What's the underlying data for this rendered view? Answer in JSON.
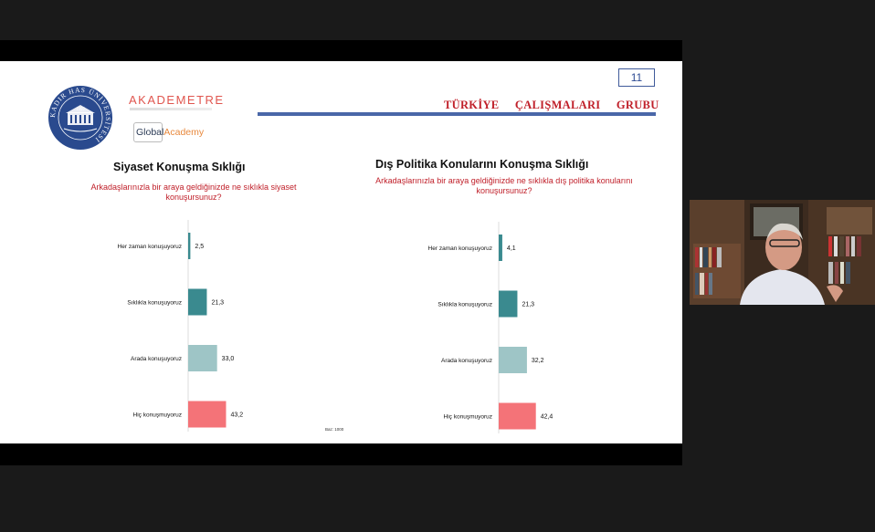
{
  "slide": {
    "page_number": "11",
    "group_title": "TÜRKİYE ÇALIŞMALARI GRUBU",
    "logos": {
      "kadir_has": "KADIR HAS ÜNİVERSİTESİ",
      "kadir_has_year": "1997",
      "akademetre": "AKADEMETRE",
      "global": "Global",
      "academy": "Academy"
    },
    "base_note": "Baz: 1000"
  },
  "chart_data": [
    {
      "type": "bar",
      "orientation": "horizontal",
      "title": "Siyaset Konuşma Sıklığı",
      "subtitle": "Arkadaşlarınızla bir araya geldiğinizde ne sıklıkla siyaset konuşursunuz?",
      "categories": [
        "Her zaman konuşuyoruz",
        "Sıklıkla konuşuyoruz",
        "Arada konuşuyoruz",
        "Hiç konuşmuyoruz"
      ],
      "values": [
        2.5,
        21.3,
        33.0,
        43.2
      ],
      "value_labels": [
        "2,5",
        "21,3",
        "33,0",
        "43,2"
      ],
      "colors": [
        "#3a8a8f",
        "#3a8a8f",
        "#9ec5c6",
        "#f47378"
      ],
      "xlim": [
        0,
        100
      ],
      "grid": false
    },
    {
      "type": "bar",
      "orientation": "horizontal",
      "title": "Dış Politika Konularını Konuşma Sıklığı",
      "subtitle": "Arkadaşlarınızla bir araya geldiğinizde ne sıklıkla dış politika konularını konuşursunuz?",
      "categories": [
        "Her zaman konuşuyoruz",
        "Sıklıkla konuşuyoruz",
        "Arada konuşuyoruz",
        "Hiç konuşmuyoruz"
      ],
      "values": [
        4.1,
        21.3,
        32.2,
        42.4
      ],
      "value_labels": [
        "4,1",
        "21,3",
        "32,2",
        "42,4"
      ],
      "colors": [
        "#3a8a8f",
        "#3a8a8f",
        "#9ec5c6",
        "#f47378"
      ],
      "xlim": [
        0,
        100
      ],
      "grid": false
    }
  ]
}
